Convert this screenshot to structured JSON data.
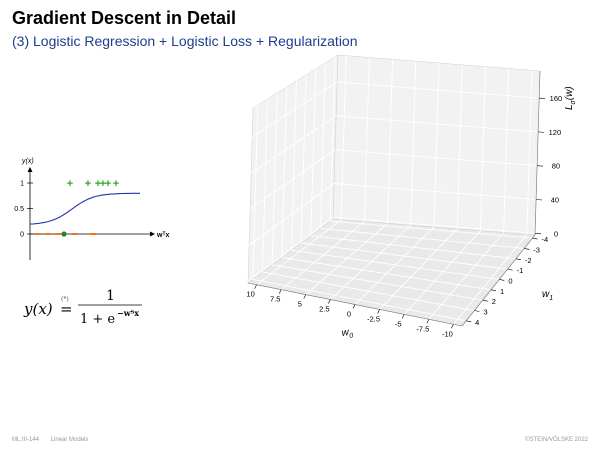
{
  "slide": {
    "title": "Gradient Descent in Detail",
    "subtitle": "(3) Logistic Regression + Logistic Loss + Regularization",
    "footer_left": "ML:III-144",
    "footer_section": "Linear Models",
    "footer_right": "©STEIN/VÖLSKE 2022"
  },
  "colors": {
    "accent": "#1f3d8c",
    "positive": "#33aa22",
    "negative": "#ee7722",
    "curve": "#2233aa"
  },
  "chart_data": [
    {
      "type": "line",
      "xlabel": "wᵀx",
      "ylabel": "y(x)",
      "yticks": [
        "0",
        "0.5",
        "1"
      ],
      "curve_type": "sigmoid",
      "positive_marker": "+",
      "negative_marker": "−"
    },
    {
      "type": "surface",
      "zlabel": "L_σ(w)",
      "ztick_labels": [
        "0",
        "40",
        "80",
        "120",
        "160"
      ],
      "w0_label": "w_0",
      "w0_tick_labels": [
        "10",
        "7.5",
        "5",
        "2.5",
        "0",
        "-2.5",
        "-5",
        "-7.5",
        "-10"
      ],
      "w1_label": "w_1",
      "w1_tick_labels": [
        "-4",
        "-3",
        "-2",
        "-1",
        "0",
        "1",
        "2",
        "3",
        "4"
      ]
    }
  ],
  "formula": {
    "lhs": "y(x)",
    "eq": "=",
    "star": "(*)",
    "numerator": "1",
    "denominator": "1 + e",
    "exponent": "−wᵀx"
  }
}
